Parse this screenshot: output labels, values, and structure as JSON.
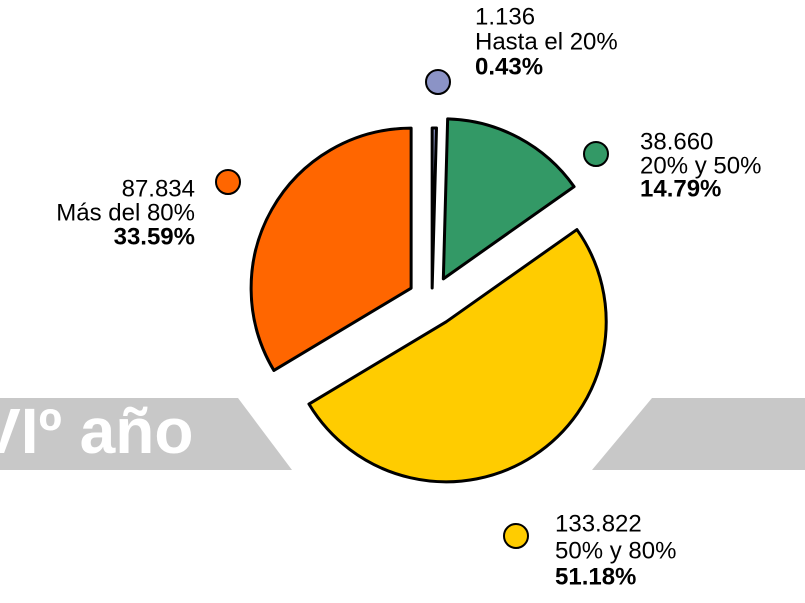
{
  "chart_data": {
    "type": "pie",
    "background_text": "VIº año",
    "labels": [
      "Hasta el 20%",
      "20% y 50%",
      "50% y 80%",
      "Más del 80%"
    ],
    "count_labels": [
      "1.136",
      "38.660",
      "133.822",
      "87.834"
    ],
    "values": [
      0.43,
      14.79,
      51.18,
      33.59
    ],
    "value_labels": [
      "0.43%",
      "14.79%",
      "51.18%",
      "33.59%"
    ],
    "colors": [
      "#8b93c6",
      "#339966",
      "#ffcc00",
      "#ff6600"
    ]
  }
}
